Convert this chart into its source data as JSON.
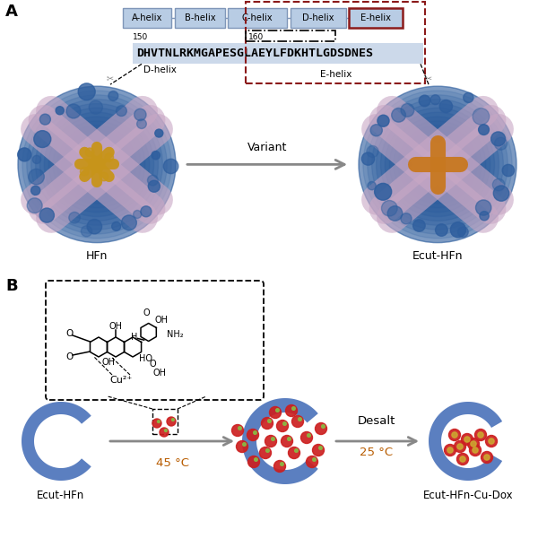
{
  "panel_a_label": "A",
  "panel_b_label": "B",
  "helix_labels": [
    "A-helix",
    "B-helix",
    "C-helix",
    "D-helix",
    "E-helix"
  ],
  "helix_box_color": "#b8cce4",
  "helix_border_color": "#7f96b8",
  "e_helix_border_color": "#8b1a1a",
  "sequence_text": "DHVTNLRKMGAPESGLAEYLFDKHTLGDSDNES",
  "seq_split": 13,
  "seq_label_150": "150",
  "seq_label_160": "160",
  "seq_bg_color": "#ccd9ea",
  "d_helix_label": "D-helix",
  "e_helix_seq_label": "E-helix",
  "variant_label": "Variant",
  "hfn_label": "HFn",
  "ecut_label": "Ecut-HFn",
  "ecut_hfn_label": "Ecut-HFn",
  "ecut_hfn_cu_dox_label": "Ecut-HFn-Cu-Dox",
  "temp1_label": "45 °C",
  "temp2_label": "25 °C",
  "desalt_label": "Desalt",
  "cu2plus_label": "Cu²⁺",
  "bg_color": "#ffffff",
  "arrow_color": "#888888",
  "temp_color": "#b85c00",
  "dashed_red_color": "#8b1a1a",
  "protein_blue": "#2e5e9e",
  "protein_pink": "#c9a8c5",
  "protein_gold": "#c8941a",
  "protein_orange": "#c87820",
  "ring_blue": "#5b7fc0",
  "ring_blue_light": "#7090cc",
  "dox_red": "#cc2020",
  "dox_yellow": "#ccaa30",
  "dox_green": "#88bb44"
}
